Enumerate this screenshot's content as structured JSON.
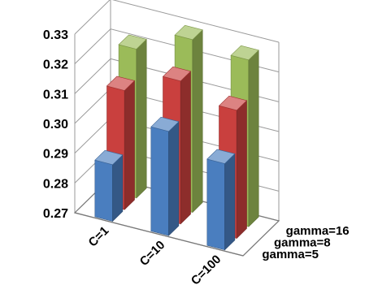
{
  "chart_data": {
    "type": "bar",
    "subtype": "3d-clustered-columns",
    "title": "",
    "xlabel": "",
    "ylabel": "",
    "categories": [
      "C=1",
      "C=10",
      "C=100"
    ],
    "series": [
      {
        "name": "gamma=5",
        "color": "#4a7ebf",
        "values": [
          0.289,
          0.305,
          0.299
        ]
      },
      {
        "name": "gamma=8",
        "color": "#c9403e",
        "values": [
          0.31,
          0.318,
          0.313
        ]
      },
      {
        "name": "gamma=16",
        "color": "#9bbb59",
        "values": [
          0.32,
          0.328,
          0.326
        ]
      }
    ],
    "yticks": [
      "0.27",
      "0.28",
      "0.29",
      "0.30",
      "0.31",
      "0.32",
      "0.33"
    ],
    "ylim": [
      0.27,
      0.33
    ],
    "grid": true,
    "legend": "none (series names shown on depth axis)"
  }
}
